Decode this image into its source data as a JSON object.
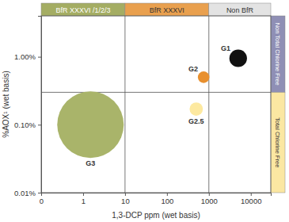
{
  "chart_data": {
    "type": "bubble",
    "x_label": "1,3-DCP ppm (wet basis)",
    "y_label": "%AOX¹ (wet basis)",
    "log": true,
    "xlim": [
      0.1,
      30000
    ],
    "xticks": [
      {
        "value": 0.1,
        "label": "0"
      },
      1,
      10,
      100,
      1000,
      10000
    ],
    "ylim": [
      0.01,
      4
    ],
    "yticks": [
      {
        "value": 0.01,
        "label": "0.01%"
      },
      {
        "value": 0.1,
        "label": "0.10%"
      },
      {
        "value": 1,
        "label": "1.00%"
      }
    ],
    "labels": [
      "G1",
      "G2",
      "G2.5",
      "G3"
    ],
    "x": [
      5000,
      750,
      500,
      1.5
    ],
    "values": [
      0.95,
      0.5,
      0.17,
      0.1
    ],
    "sizes": [
      7,
      3,
      4,
      100
    ],
    "colors": [
      "#111111",
      "#e8902f",
      "#fde9a0",
      "#a9b46a"
    ],
    "x_regions": [
      {
        "label": "BfR XXXVI /1/2/3",
        "from": 0.1,
        "to": 10,
        "color": "#a4ad63"
      },
      {
        "label": "BfR XXXVI",
        "from": 10,
        "to": 1000,
        "color": "#e9a04e"
      },
      {
        "label": "Non BfR",
        "from": 1000,
        "to": 30000,
        "color": "#e3e3e3"
      }
    ],
    "y_regions": [
      {
        "label": "Non Total Chlorine Free",
        "from": 0.3,
        "to": 4,
        "color": "#8f8fb5"
      },
      {
        "label": "Total Chlorine Free",
        "from": 0.01,
        "to": 0.3,
        "color": "#fbe7a2"
      }
    ]
  }
}
